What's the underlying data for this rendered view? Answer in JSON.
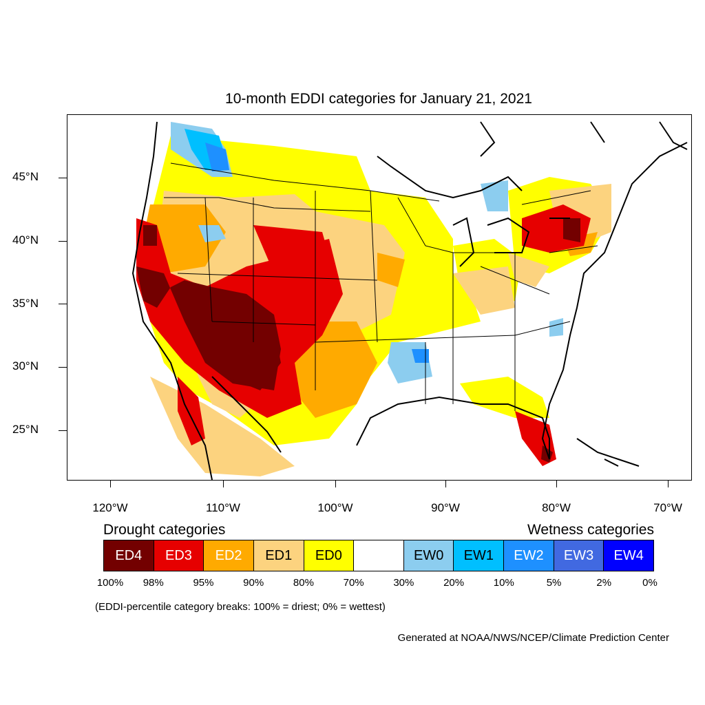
{
  "title": "10-month EDDI categories for January 21, 2021",
  "axes": {
    "lat_labels": [
      "45°N",
      "40°N",
      "35°N",
      "30°N",
      "25°N"
    ],
    "lon_labels": [
      "120°W",
      "110°W",
      "100°W",
      "90°W",
      "80°W",
      "70°W"
    ]
  },
  "legend": {
    "drought_heading": "Drought categories",
    "wetness_heading": "Wetness categories",
    "categories": [
      {
        "label": "ED4",
        "color": "#730000",
        "text_color": "#ffffff"
      },
      {
        "label": "ED3",
        "color": "#e60000",
        "text_color": "#ffffff"
      },
      {
        "label": "ED2",
        "color": "#ffaa00",
        "text_color": "#ffffff"
      },
      {
        "label": "ED1",
        "color": "#fcd37f",
        "text_color": "#000000"
      },
      {
        "label": "ED0",
        "color": "#ffff00",
        "text_color": "#000000"
      },
      {
        "label": "",
        "color": "#ffffff",
        "text_color": "#000000"
      },
      {
        "label": "EW0",
        "color": "#8ccdef",
        "text_color": "#000000"
      },
      {
        "label": "EW1",
        "color": "#00bfff",
        "text_color": "#000000"
      },
      {
        "label": "EW2",
        "color": "#1e90ff",
        "text_color": "#ffffff"
      },
      {
        "label": "EW3",
        "color": "#4169e1",
        "text_color": "#ffffff"
      },
      {
        "label": "EW4",
        "color": "#0000ff",
        "text_color": "#ffffff"
      }
    ],
    "breaks": [
      "100%",
      "98%",
      "95%",
      "90%",
      "80%",
      "70%",
      "30%",
      "20%",
      "10%",
      "5%",
      "2%",
      "0%"
    ]
  },
  "note": "(EDDI-percentile category breaks: 100% = driest; 0% = wettest)",
  "credit": "Generated at NOAA/NWS/NCEP/Climate Prediction Center"
}
